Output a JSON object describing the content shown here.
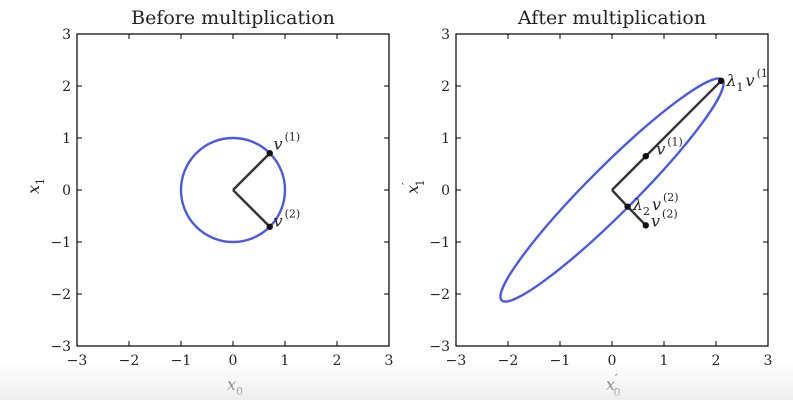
{
  "panels": [
    {
      "title": "Before multiplication",
      "xlabel": "x",
      "xlabel_sub": "0",
      "xlabel_prime": "",
      "ylabel": "x",
      "ylabel_sub": "1",
      "ylabel_prime": "",
      "xlim": [
        -3,
        3
      ],
      "ylim": [
        -3,
        3
      ],
      "ticks": [
        "−3",
        "−2",
        "−1",
        "0",
        "1",
        "2",
        "3"
      ],
      "tick_values": [
        -3,
        -2,
        -1,
        0,
        1,
        2,
        3
      ],
      "ellipse": {
        "center": [
          0,
          0
        ],
        "semi_major": 1,
        "semi_minor": 1,
        "angle_deg": 0
      },
      "vectors": [
        {
          "from": [
            0,
            0
          ],
          "to": [
            0.707,
            0.707
          ]
        },
        {
          "from": [
            0,
            0
          ],
          "to": [
            0.707,
            -0.707
          ]
        }
      ],
      "points": [
        {
          "at": [
            0.707,
            0.707
          ]
        },
        {
          "at": [
            0.707,
            -0.707
          ]
        }
      ],
      "annotations": [
        {
          "id": "v1",
          "at": [
            0.78,
            0.78
          ],
          "prefix": "",
          "base": "v",
          "sup": "(1)"
        },
        {
          "id": "v2",
          "at": [
            0.78,
            -0.7
          ],
          "prefix": "",
          "base": "v",
          "sup": "(2)"
        }
      ]
    },
    {
      "title": "After multiplication",
      "xlabel": "x",
      "xlabel_sub": "0",
      "xlabel_prime": "′",
      "ylabel": "x",
      "ylabel_sub": "1",
      "ylabel_prime": "′",
      "xlim": [
        -3,
        3
      ],
      "ylim": [
        -3,
        3
      ],
      "ticks": [
        "−3",
        "−2",
        "−1",
        "0",
        "1",
        "2",
        "3"
      ],
      "tick_values": [
        -3,
        -2,
        -1,
        0,
        1,
        2,
        3
      ],
      "ellipse": {
        "center": [
          0,
          0
        ],
        "semi_major": 3.0,
        "semi_minor": 0.45,
        "angle_deg": 45
      },
      "vectors": [
        {
          "from": [
            0,
            0
          ],
          "to": [
            2.1,
            2.1
          ]
        },
        {
          "from": [
            0,
            0
          ],
          "to": [
            0.3,
            -0.32
          ]
        },
        {
          "from": [
            0.3,
            -0.32
          ],
          "to": [
            0.65,
            -0.68
          ]
        }
      ],
      "points": [
        {
          "at": [
            2.1,
            2.1
          ]
        },
        {
          "at": [
            0.65,
            0.65
          ]
        },
        {
          "at": [
            0.3,
            -0.32
          ]
        },
        {
          "at": [
            0.65,
            -0.68
          ]
        }
      ],
      "annotations": [
        {
          "id": "l1v1",
          "at": [
            2.2,
            2.0
          ],
          "prefix": "λ",
          "prefix_sub": "1",
          "base": "v",
          "sup": "(1"
        },
        {
          "id": "v1",
          "at": [
            0.85,
            0.68
          ],
          "prefix": "",
          "base": "v",
          "sup": "(1)"
        },
        {
          "id": "l2v2",
          "at": [
            0.4,
            -0.38
          ],
          "prefix": "λ",
          "prefix_sub": "2",
          "base": "v",
          "sup": "(2)"
        },
        {
          "id": "v2",
          "at": [
            0.75,
            -0.7
          ],
          "prefix": "",
          "base": "v",
          "sup": "(2)"
        }
      ]
    }
  ]
}
